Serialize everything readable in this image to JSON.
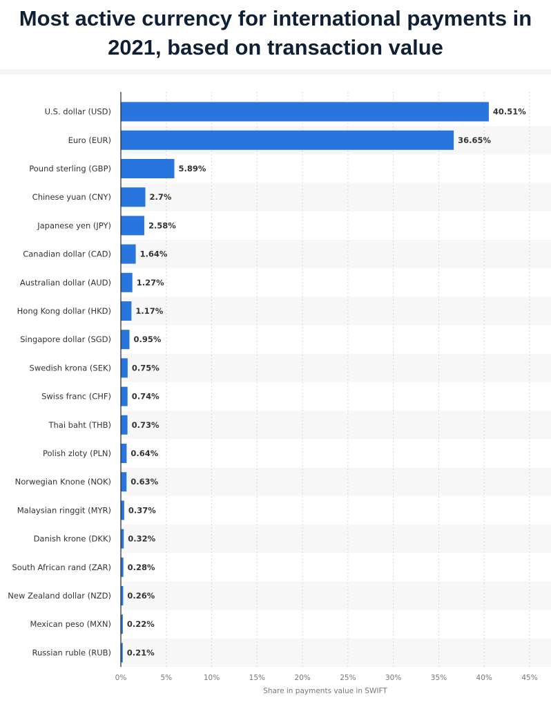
{
  "title": "Most active currency for international payments in 2021, based on transaction value",
  "colors": {
    "bar": "#2876dd",
    "stripe": "#f7f7f7",
    "grid": "#d6d6d6",
    "axis": "#222222"
  },
  "chart_data": {
    "type": "bar",
    "orientation": "horizontal",
    "categories": [
      "U.S. dollar (USD)",
      "Euro (EUR)",
      "Pound sterling (GBP)",
      "Chinese yuan (CNY)",
      "Japanese yen (JPY)",
      "Canadian dollar (CAD)",
      "Australian dollar (AUD)",
      "Hong Kong dollar (HKD)",
      "Singapore dollar (SGD)",
      "Swedish krona (SEK)",
      "Swiss franc (CHF)",
      "Thai baht (THB)",
      "Polish zloty (PLN)",
      "Norwegian Knone (NOK)",
      "Malaysian ringgit (MYR)",
      "Danish krone (DKK)",
      "South African rand (ZAR)",
      "New Zealand dollar (NZD)",
      "Mexican peso (MXN)",
      "Russian ruble (RUB)"
    ],
    "values": [
      40.51,
      36.65,
      5.89,
      2.7,
      2.58,
      1.64,
      1.27,
      1.17,
      0.95,
      0.75,
      0.74,
      0.73,
      0.64,
      0.63,
      0.37,
      0.32,
      0.28,
      0.26,
      0.22,
      0.21
    ],
    "value_labels": [
      "40.51%",
      "36.65%",
      "5.89%",
      "2.7%",
      "2.58%",
      "1.64%",
      "1.27%",
      "1.17%",
      "0.95%",
      "0.75%",
      "0.74%",
      "0.73%",
      "0.64%",
      "0.63%",
      "0.37%",
      "0.32%",
      "0.28%",
      "0.26%",
      "0.22%",
      "0.21%"
    ],
    "x_ticks": [
      0,
      5,
      10,
      15,
      20,
      25,
      30,
      35,
      40,
      45
    ],
    "x_tick_labels": [
      "0%",
      "5%",
      "10%",
      "15%",
      "20%",
      "25%",
      "30%",
      "35%",
      "40%",
      "45%"
    ],
    "xlim": [
      0,
      45
    ],
    "xlabel": "Share in payments value in SWIFT",
    "ylabel": "",
    "grid": true
  }
}
